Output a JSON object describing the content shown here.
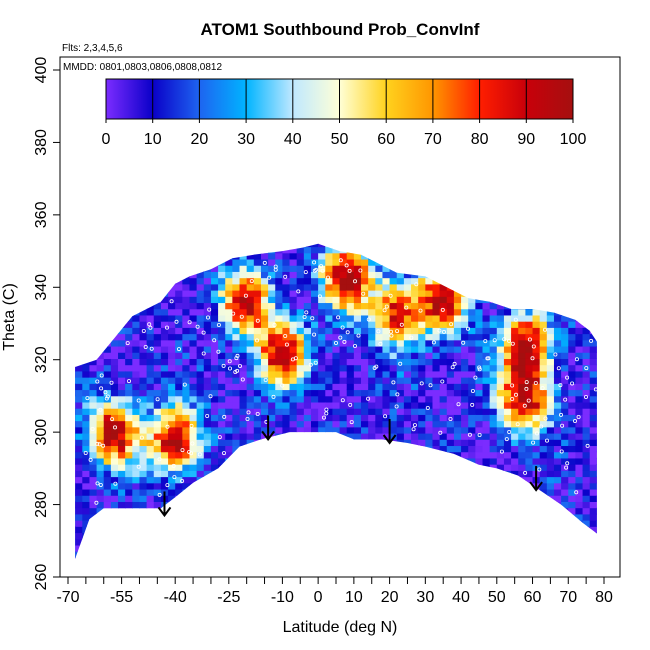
{
  "chart_data": {
    "type": "heatmap",
    "title": "ATOM1 Southbound Prob_ConvInf",
    "annotations": [
      "Flts: 2,3,4,5,6",
      "MMDD: 0801,0803,0806,0808,0812"
    ],
    "xlabel": "Latitude (deg N)",
    "ylabel": "Theta (C)",
    "xlim": [
      -70,
      80
    ],
    "ylim": [
      260,
      400
    ],
    "x_tick_labels": [
      "-70",
      "-55",
      "-40",
      "-25",
      "-10",
      "0",
      "10",
      "20",
      "30",
      "40",
      "50",
      "60",
      "70",
      "80"
    ],
    "y_tick_labels": [
      "260",
      "280",
      "300",
      "320",
      "340",
      "360",
      "380",
      "400"
    ],
    "colorbar": {
      "labels": [
        "0",
        "10",
        "20",
        "30",
        "40",
        "50",
        "60",
        "70",
        "80",
        "90",
        "100"
      ],
      "range": [
        0,
        100
      ],
      "colors": [
        "#7b2cff",
        "#0a00c8",
        "#1e64f0",
        "#00b4ff",
        "#bfe8ff",
        "#ffffd6",
        "#ffd21e",
        "#ff9600",
        "#ff1e00",
        "#c8000a",
        "#a50f0f"
      ]
    },
    "lower_boundary": [
      [
        -68,
        265
      ],
      [
        -64,
        276
      ],
      [
        -60,
        279
      ],
      [
        -55,
        279
      ],
      [
        -48,
        279
      ],
      [
        -44,
        279
      ],
      [
        -40,
        282
      ],
      [
        -35,
        286
      ],
      [
        -28,
        290
      ],
      [
        -22,
        296
      ],
      [
        -16,
        298
      ],
      [
        -12,
        299
      ],
      [
        -8,
        300
      ],
      [
        -2,
        300
      ],
      [
        5,
        300
      ],
      [
        10,
        298
      ],
      [
        18,
        298
      ],
      [
        25,
        297
      ],
      [
        30,
        296
      ],
      [
        38,
        294
      ],
      [
        45,
        291
      ],
      [
        50,
        290
      ],
      [
        56,
        288
      ],
      [
        62,
        284
      ],
      [
        68,
        280
      ],
      [
        74,
        275
      ],
      [
        78,
        272
      ]
    ],
    "upper_boundary": [
      [
        -68,
        318
      ],
      [
        -62,
        320
      ],
      [
        -57,
        326
      ],
      [
        -52,
        332
      ],
      [
        -48,
        334
      ],
      [
        -44,
        336
      ],
      [
        -40,
        341
      ],
      [
        -36,
        343
      ],
      [
        -30,
        345
      ],
      [
        -24,
        348
      ],
      [
        -18,
        349
      ],
      [
        -10,
        350
      ],
      [
        -4,
        351
      ],
      [
        0,
        352
      ],
      [
        6,
        350
      ],
      [
        12,
        349
      ],
      [
        16,
        347
      ],
      [
        22,
        344
      ],
      [
        30,
        343
      ],
      [
        36,
        340
      ],
      [
        42,
        337
      ],
      [
        48,
        336
      ],
      [
        54,
        334
      ],
      [
        60,
        334
      ],
      [
        66,
        333
      ],
      [
        72,
        331
      ],
      [
        76,
        328
      ],
      [
        78,
        325
      ],
      [
        78,
        298
      ]
    ],
    "hotspots": [
      {
        "lat": -57,
        "theta": 300,
        "value": 90
      },
      {
        "lat": -40,
        "theta": 298,
        "value": 92
      },
      {
        "lat": -20,
        "theta": 336,
        "value": 82
      },
      {
        "lat": -10,
        "theta": 322,
        "value": 90
      },
      {
        "lat": 8,
        "theta": 343,
        "value": 92
      },
      {
        "lat": 22,
        "theta": 333,
        "value": 80
      },
      {
        "lat": 35,
        "theta": 337,
        "value": 85
      },
      {
        "lat": 58,
        "theta": 324,
        "value": 92
      },
      {
        "lat": 58,
        "theta": 309,
        "value": 88
      }
    ],
    "arrows": [
      {
        "lat": -43,
        "theta": 277
      },
      {
        "lat": -14,
        "theta": 298
      },
      {
        "lat": 20,
        "theta": 297
      },
      {
        "lat": 61,
        "theta": 284
      }
    ]
  }
}
